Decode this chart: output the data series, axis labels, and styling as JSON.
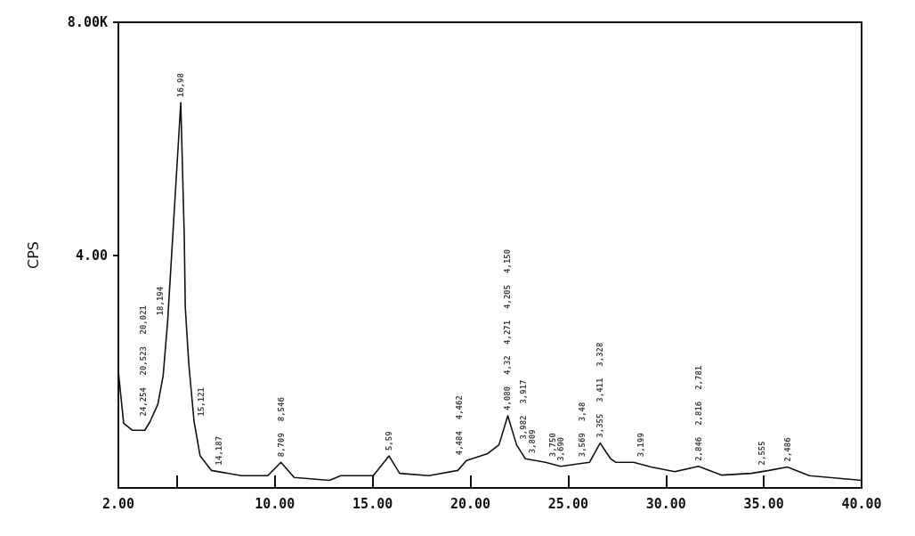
{
  "chart_data": {
    "type": "line",
    "ylabel": "CPS",
    "xlim": [
      2,
      40
    ],
    "xticks": [
      {
        "value": 2,
        "label": "2.00"
      },
      {
        "value": 5,
        "label": null
      },
      {
        "value": 10,
        "label": "10.00"
      },
      {
        "value": 15,
        "label": "15.00"
      },
      {
        "value": 20,
        "label": "20.00"
      },
      {
        "value": 25,
        "label": "25.00"
      },
      {
        "value": 30,
        "label": "30.00"
      },
      {
        "value": 35,
        "label": "35.00"
      },
      {
        "value": 40,
        "label": "40.00"
      }
    ],
    "ylim": [
      0,
      8
    ],
    "yticks": [
      {
        "value": 4,
        "label": "4.00"
      },
      {
        "value": 8,
        "label": "8.00K"
      }
    ],
    "grid": false,
    "marker": "none",
    "line_style": "solid",
    "series": [
      {
        "color": "#111111",
        "x": [
          2.0,
          2.27,
          2.72,
          3.35,
          3.62,
          4.02,
          4.29,
          4.52,
          4.74,
          5.19,
          5.37,
          5.42,
          5.6,
          5.87,
          6.18,
          6.76,
          8.29,
          9.64,
          10.31,
          10.99,
          12.79,
          13.37,
          15.03,
          15.84,
          16.38,
          17.87,
          19.35,
          19.8,
          20.88,
          21.46,
          21.91,
          22.36,
          22.81,
          23.84,
          24.61,
          26.09,
          26.63,
          27.17,
          27.44,
          28.34,
          29.24,
          30.45,
          31.66,
          32.83,
          34.36,
          35.26,
          36.2,
          37.33,
          40.0
        ],
        "values": [
          2.0,
          1.11,
          0.99,
          0.99,
          1.14,
          1.44,
          1.93,
          2.87,
          4.1,
          6.62,
          4.3,
          3.11,
          2.13,
          1.14,
          0.55,
          0.3,
          0.21,
          0.21,
          0.44,
          0.18,
          0.13,
          0.21,
          0.21,
          0.55,
          0.25,
          0.21,
          0.3,
          0.47,
          0.59,
          0.74,
          1.24,
          0.74,
          0.5,
          0.44,
          0.37,
          0.44,
          0.77,
          0.5,
          0.44,
          0.44,
          0.36,
          0.28,
          0.37,
          0.22,
          0.25,
          0.3,
          0.36,
          0.21,
          0.13
        ]
      }
    ],
    "annotations": [
      {
        "text": "24,254",
        "x": 3.62,
        "y": 1.14
      },
      "20,523",
      "20,021",
      {
        "text": "18,194",
        "x": 4.52,
        "y": 2.87
      },
      {
        "text": "16,98",
        "x": 5.19,
        "y": 6.62
      },
      {
        "text": "15,121",
        "x": 5.87,
        "y": 1.14
      },
      {
        "text": "14,187",
        "x": 6.76,
        "y": 0.3
      },
      {
        "text": "8,709",
        "x": 10.31,
        "y": 0.44
      },
      "8,546",
      {
        "text": "5,59",
        "x": 15.84,
        "y": 0.55
      },
      {
        "text": "4,484",
        "x": 19.8,
        "y": 0.47
      },
      "4,462",
      {
        "text": "4,080",
        "x": 21.91,
        "y": 1.24
      },
      "4,32",
      "4,271",
      "4,205",
      "4,150",
      {
        "text": "3,982",
        "x": 22.36,
        "y": 0.74
      },
      "3,917",
      {
        "text": "3,809",
        "x": 22.81,
        "y": 0.5
      },
      {
        "text": "3,750",
        "x": 23.84,
        "y": 0.44
      },
      {
        "text": "3,690",
        "x": 24.61,
        "y": 0.37
      },
      {
        "text": "3,569",
        "x": 26.09,
        "y": 0.44
      },
      "3,48",
      {
        "text": "3,355",
        "x": 26.63,
        "y": 0.77
      },
      "3,411",
      "3,328",
      {
        "text": "3,199",
        "x": 28.34,
        "y": 0.44
      },
      {
        "text": "2,846",
        "x": 31.66,
        "y": 0.37
      },
      "2,816",
      "2,781",
      {
        "text": "2,555",
        "x": 35.26,
        "y": 0.3
      },
      {
        "text": "2,486",
        "x": 36.2,
        "y": 0.36
      }
    ]
  }
}
